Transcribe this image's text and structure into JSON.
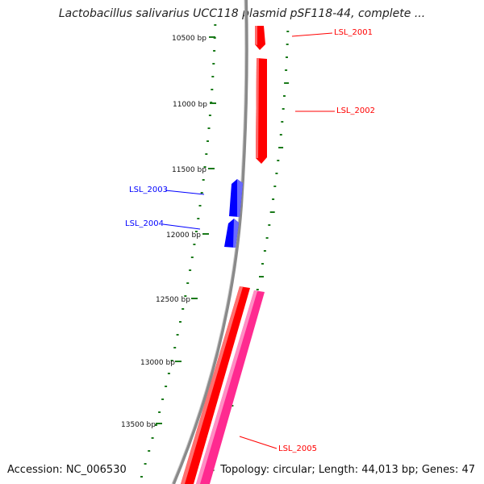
{
  "title": "Lactobacillus salivarius UCC118 plasmid pSF118-44, complete ...",
  "footer": {
    "accession": "Accession: NC_006530",
    "summary": "Topology: circular; Length: 44,013 bp; Genes: 47"
  },
  "ticks": [
    "10500 bp",
    "11000 bp",
    "11500 bp",
    "12000 bp",
    "12500 bp",
    "13000 bp",
    "13500 bp"
  ],
  "genes": [
    {
      "id": "LSL_2001",
      "strand": "forward",
      "color": "#ff0000"
    },
    {
      "id": "LSL_2002",
      "strand": "forward",
      "color": "#ff0000"
    },
    {
      "id": "LSL_2003",
      "strand": "reverse",
      "color": "#0000ff"
    },
    {
      "id": "LSL_2004",
      "strand": "reverse",
      "color": "#0000ff"
    },
    {
      "id": "LSL_2005",
      "strand": "forward",
      "color": "#ff2a90"
    }
  ],
  "colors": {
    "backbone": "#8a8a8a",
    "tick": "#1a7a1a",
    "forward_gene": "#ff0000",
    "reverse_gene": "#0000ff",
    "pseudo_gene": "#ff2a90"
  }
}
